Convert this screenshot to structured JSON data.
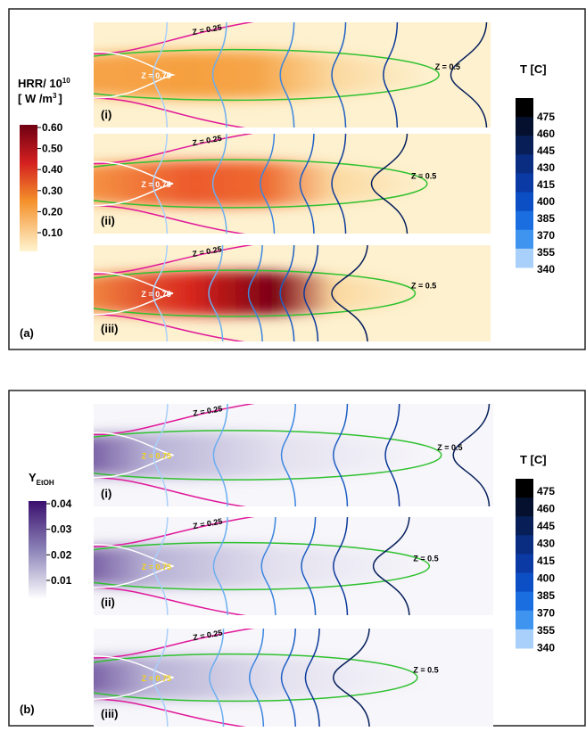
{
  "panels": [
    {
      "label": "(a)",
      "field_colorbar": {
        "title": {
          "line1": "HRR/ 10",
          "line1_sup": "10",
          "line2": "[ W /m",
          "line2_sup": "3",
          "line2_end": "]"
        },
        "ticks": [
          "0.60",
          "0.50",
          "0.40",
          "0.30",
          "0.20",
          "0.10"
        ]
      },
      "temperature_colorbar": {
        "title": "T [C]",
        "ticks": [
          "475",
          "460",
          "445",
          "430",
          "415",
          "400",
          "385",
          "370",
          "355",
          "340"
        ]
      },
      "subplots": [
        {
          "label": "(i)",
          "contours": [
            "Z = 0.25",
            "Z = 0.75",
            "Z = 0.5"
          ]
        },
        {
          "label": "(ii)",
          "contours": [
            "Z = 0.25",
            "Z = 0.75",
            "Z = 0.5"
          ]
        },
        {
          "label": "(iii)",
          "contours": [
            "Z = 0.25",
            "Z = 0.75",
            "Z = 0.5"
          ]
        }
      ]
    },
    {
      "label": "(b)",
      "field_colorbar": {
        "title": {
          "line1": "Y",
          "line1_sub": "EtOH"
        },
        "ticks": [
          "0.04",
          "0.03",
          "0.02",
          "0.01"
        ]
      },
      "temperature_colorbar": {
        "title": "T [C]",
        "ticks": [
          "475",
          "460",
          "445",
          "430",
          "415",
          "400",
          "385",
          "370",
          "355",
          "340"
        ]
      },
      "subplots": [
        {
          "label": "(i)",
          "contours": [
            "Z = 0.25",
            "Z = 0.75",
            "Z = 0.5"
          ]
        },
        {
          "label": "(ii)",
          "contours": [
            "Z = 0.25",
            "Z = 0.75",
            "Z = 0.5"
          ]
        },
        {
          "label": "(iii)",
          "contours": [
            "Z = 0.25",
            "Z = 0.75",
            "Z = 0.5"
          ]
        }
      ]
    }
  ]
}
